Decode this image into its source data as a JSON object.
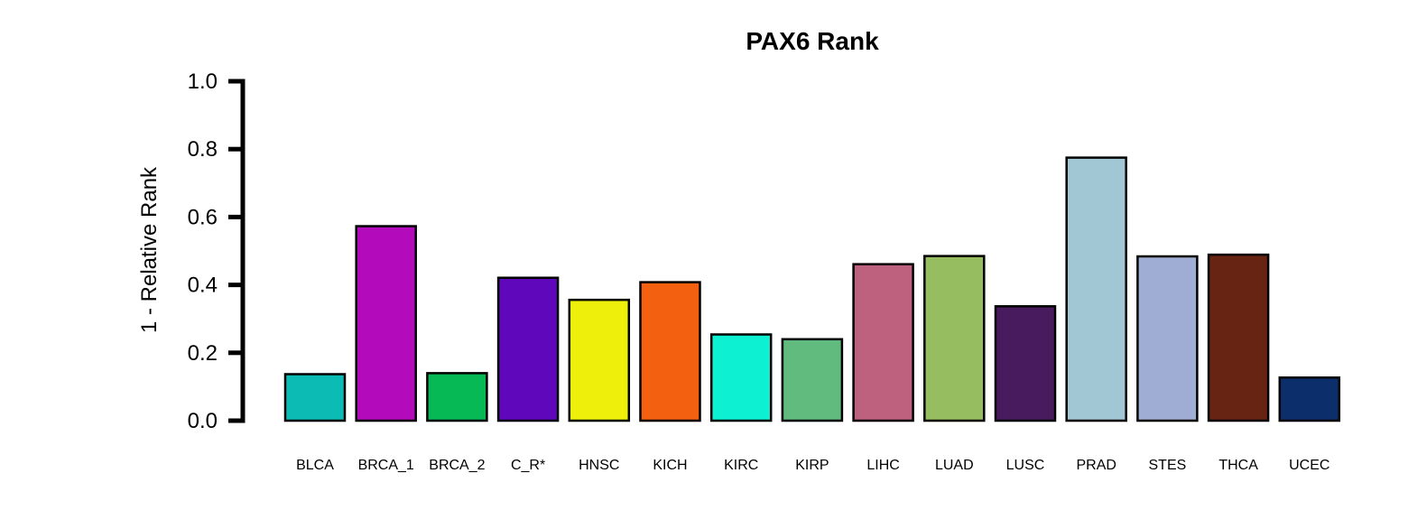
{
  "chart_data": {
    "type": "bar",
    "title": "PAX6 Rank",
    "ylabel": "1 - Relative Rank",
    "xlabel": "",
    "ylim": [
      0,
      1
    ],
    "yticks": [
      "0.0",
      "0.2",
      "0.4",
      "0.6",
      "0.8",
      "1.0"
    ],
    "ytick_values": [
      0,
      0.2,
      0.4,
      0.6,
      0.8,
      1.0
    ],
    "categories": [
      "BLCA",
      "BRCA_1",
      "BRCA_2",
      "C_R*",
      "HNSC",
      "KICH",
      "KIRC",
      "KIRP",
      "LIHC",
      "LUAD",
      "LUSC",
      "PRAD",
      "STES",
      "THCA",
      "UCEC"
    ],
    "values": [
      0.137,
      0.573,
      0.14,
      0.421,
      0.356,
      0.408,
      0.254,
      0.24,
      0.461,
      0.485,
      0.337,
      0.775,
      0.484,
      0.489,
      0.127
    ],
    "colors": [
      "#0bbbb4",
      "#b30bbb",
      "#07b955",
      "#5e07bb",
      "#eef00c",
      "#f26010",
      "#0df0d2",
      "#61bb7f",
      "#be617f",
      "#97bd61",
      "#481b5e",
      "#a1c6d4",
      "#9fadd4",
      "#672413",
      "#0c2f6b"
    ],
    "grid": false,
    "legend": "none"
  }
}
